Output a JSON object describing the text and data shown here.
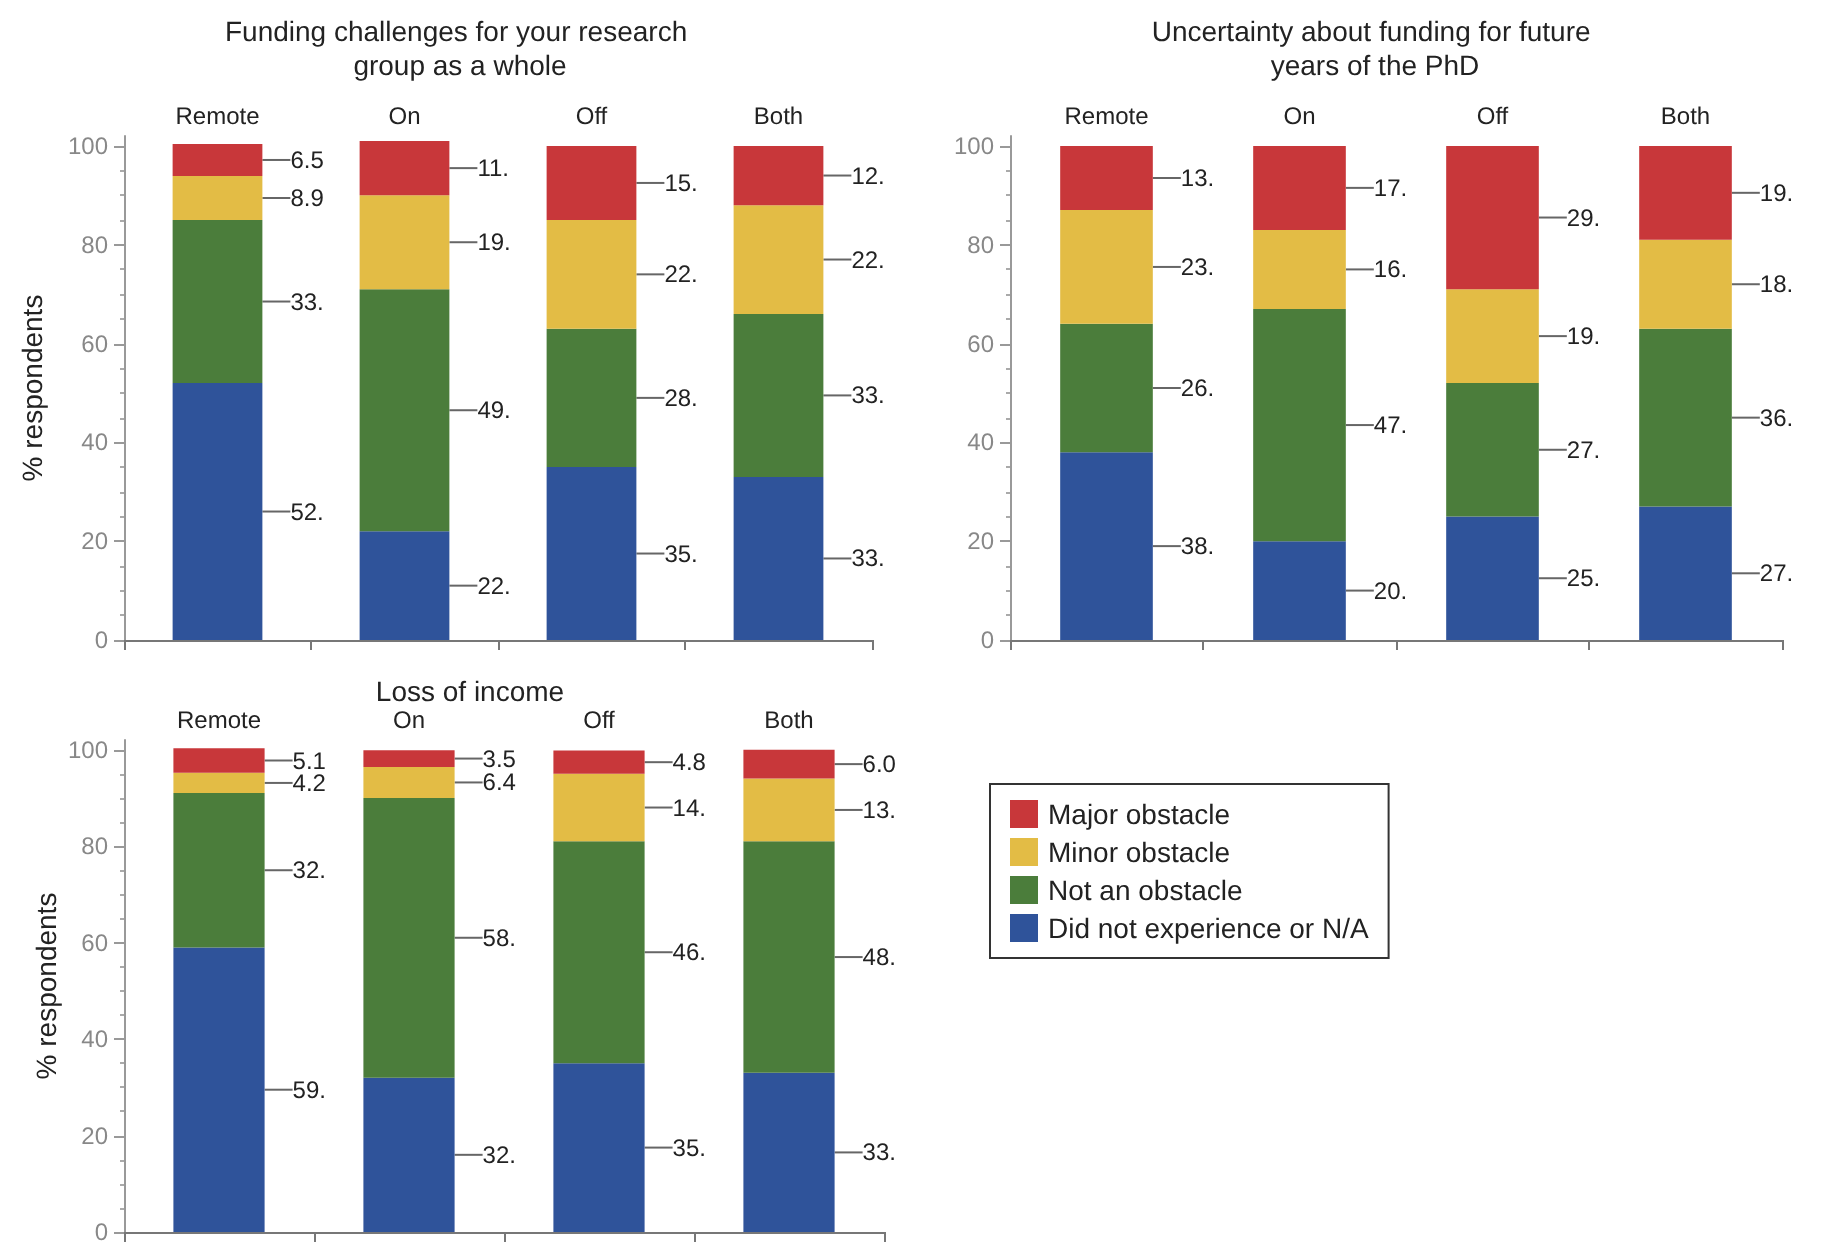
{
  "chart_data": [
    {
      "type": "bar",
      "stacked": true,
      "title": "Funding challenges for your research group as a whole",
      "ylabel": "% respondents",
      "categories": [
        "Remote",
        "On",
        "Off",
        "Both"
      ],
      "ylim": [
        0,
        102
      ],
      "yticks": [
        0,
        20,
        40,
        60,
        80,
        100
      ],
      "grid": false,
      "legend": false,
      "series": [
        {
          "color": "#2f539a",
          "values": [
            52,
            22,
            35,
            33
          ],
          "value_labels": [
            "52.",
            "22.",
            "35.",
            "33."
          ]
        },
        {
          "color": "#4b7d3b",
          "values": [
            33,
            49,
            28,
            33
          ],
          "value_labels": [
            "33.",
            "49.",
            "28.",
            "33."
          ]
        },
        {
          "color": "#e3bc45",
          "values": [
            8.9,
            19,
            22,
            22
          ],
          "value_labels": [
            "8.9",
            "19.",
            "22.",
            "22."
          ]
        },
        {
          "color": "#c8373a",
          "values": [
            6.5,
            11,
            15,
            12
          ],
          "value_labels": [
            "6.5",
            "11.",
            "15.",
            "12."
          ]
        }
      ]
    },
    {
      "type": "bar",
      "stacked": true,
      "title": "Uncertainty about funding for future years of the PhD",
      "categories": [
        "Remote",
        "On",
        "Off",
        "Both"
      ],
      "ylim": [
        0,
        102
      ],
      "yticks": [
        0,
        20,
        40,
        60,
        80,
        100
      ],
      "grid": false,
      "legend": false,
      "series": [
        {
          "color": "#2f539a",
          "values": [
            38,
            20,
            25,
            27
          ],
          "value_labels": [
            "38.",
            "20.",
            "25.",
            "27."
          ]
        },
        {
          "color": "#4b7d3b",
          "values": [
            26,
            47,
            27,
            36
          ],
          "value_labels": [
            "26.",
            "47.",
            "27.",
            "36."
          ]
        },
        {
          "color": "#e3bc45",
          "values": [
            23,
            16,
            19,
            18
          ],
          "value_labels": [
            "23.",
            "16.",
            "19.",
            "18."
          ]
        },
        {
          "color": "#c8373a",
          "values": [
            13,
            17,
            29,
            19
          ],
          "value_labels": [
            "13.",
            "17.",
            "29.",
            "19."
          ]
        }
      ]
    },
    {
      "type": "bar",
      "stacked": true,
      "title": "Loss of income",
      "ylabel": "% respondents",
      "categories": [
        "Remote",
        "On",
        "Off",
        "Both"
      ],
      "ylim": [
        0,
        102
      ],
      "yticks": [
        0,
        20,
        40,
        60,
        80,
        100
      ],
      "grid": false,
      "legend": "right",
      "series": [
        {
          "name": "Did not experience or N/A",
          "color": "#2f539a",
          "values": [
            59,
            32,
            35,
            33
          ],
          "value_labels": [
            "59.",
            "32.",
            "35.",
            "33."
          ]
        },
        {
          "name": "Not an obstacle",
          "color": "#4b7d3b",
          "values": [
            32,
            58,
            46,
            48
          ],
          "value_labels": [
            "32.",
            "58.",
            "46.",
            "48."
          ]
        },
        {
          "name": "Minor obstacle",
          "color": "#e3bc45",
          "values": [
            4.2,
            6.4,
            14,
            13
          ],
          "value_labels": [
            "4.2",
            "6.4",
            "14.",
            "13."
          ]
        },
        {
          "name": "Major obstacle",
          "color": "#c8373a",
          "values": [
            5.1,
            3.5,
            4.8,
            6.0
          ],
          "value_labels": [
            "5.1",
            "3.5",
            "4.8",
            "6.0"
          ]
        }
      ]
    }
  ]
}
